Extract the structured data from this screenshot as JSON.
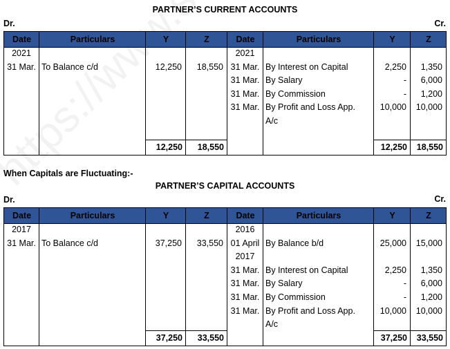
{
  "watermark": "https://www.studiestoday",
  "section_heading": "When Capitals are Fluctuating:-",
  "header_color": "#2F5597",
  "tables": [
    {
      "title": "PARTNER’S CURRENT ACCOUNTS",
      "dr": "Dr.",
      "cr": "Cr.",
      "headers": [
        "Date",
        "Particulars",
        "Y",
        "Z",
        "Date",
        "Particulars",
        "Y",
        "Z"
      ],
      "left": {
        "date": [
          "2021",
          "31 Mar."
        ],
        "particulars": [
          "",
          "To Balance c/d"
        ],
        "y": [
          "",
          "12,250"
        ],
        "z": [
          "",
          "18,550"
        ]
      },
      "right": {
        "date": [
          "2021",
          "31 Mar.",
          "31 Mar.",
          "31 Mar.",
          "31 Mar."
        ],
        "particulars": [
          "",
          "By Interest on Capital",
          "By Salary",
          "By Commission",
          "By Profit and Loss App.",
          "A/c"
        ],
        "y": [
          "",
          "2,250",
          "-",
          "-",
          "10,000"
        ],
        "z": [
          "",
          "1,350",
          "6,000",
          "1,200",
          "10,000"
        ]
      },
      "totals": {
        "left_y": "12,250",
        "left_z": "18,550",
        "right_y": "12,250",
        "right_z": "18,550"
      }
    },
    {
      "title": "PARTNER’S CAPITAL ACCOUNTS",
      "dr": "Dr.",
      "cr": "Cr.",
      "headers": [
        "Date",
        "Particulars",
        "Y",
        "Z",
        "Date",
        "Particulars",
        "Y",
        "Z"
      ],
      "left": {
        "date": [
          "2017",
          "31 Mar."
        ],
        "particulars": [
          "",
          "To Balance c/d"
        ],
        "y": [
          "",
          "37,250"
        ],
        "z": [
          "",
          "33,550"
        ]
      },
      "right": {
        "date": [
          "2016",
          "01 April",
          "2017",
          "31 Mar.",
          "31 Mar.",
          "31 Mar.",
          "31 Mar."
        ],
        "particulars": [
          "",
          "By Balance b/d",
          "",
          "By Interest on Capital",
          "By Salary",
          "By Commission",
          "By Profit and Loss App.",
          "A/c"
        ],
        "y": [
          "",
          "25,000",
          "",
          "2,250",
          "-",
          "-",
          "10,000"
        ],
        "z": [
          "",
          "15,000",
          "",
          "1,350",
          "6,000",
          "1,200",
          "10,000"
        ]
      },
      "totals": {
        "left_y": "37,250",
        "left_z": "33,550",
        "right_y": "37,250",
        "right_z": "33,550"
      }
    }
  ]
}
